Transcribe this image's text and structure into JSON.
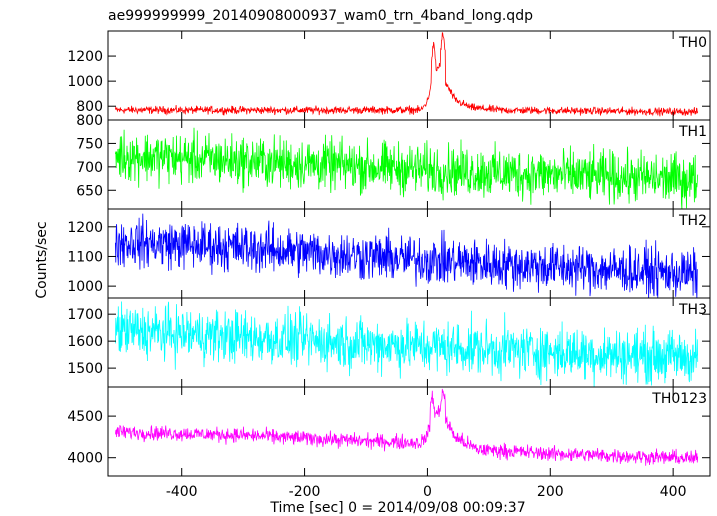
{
  "chart_data": {
    "type": "line",
    "title": "ae999999999_20140908000937_wam0_trn_4band_long.qdp",
    "xlabel": "Time [sec] 0 = 2014/09/08 00:09:37",
    "ylabel": "Counts/sec",
    "xlim": [
      -520,
      460
    ],
    "xticks": [
      -400,
      -200,
      0,
      200,
      400
    ],
    "x_range": [
      -508,
      440
    ],
    "panels": [
      {
        "name": "TH0",
        "color": "#ff0000",
        "ylim": [
          690,
          1400
        ],
        "yticks": [
          800,
          1000,
          1200
        ],
        "baseline": [
          [
            -508,
            770
          ],
          [
            -200,
            768
          ],
          [
            -10,
            770
          ],
          [
            0,
            840
          ],
          [
            10,
            1050
          ],
          [
            20,
            1130
          ],
          [
            30,
            980
          ],
          [
            45,
            850
          ],
          [
            70,
            790
          ],
          [
            120,
            768
          ],
          [
            440,
            755
          ]
        ],
        "noise": 45,
        "peaks": [
          {
            "x": 10,
            "y": 1300
          },
          {
            "x": 25,
            "y": 1390
          }
        ]
      },
      {
        "name": "TH1",
        "color": "#00ff00",
        "ylim": [
          610,
          800
        ],
        "yticks": [
          650,
          700,
          750,
          800
        ],
        "baseline": [
          [
            -508,
            725
          ],
          [
            -300,
            712
          ],
          [
            -100,
            700
          ],
          [
            100,
            688
          ],
          [
            300,
            678
          ],
          [
            440,
            672
          ]
        ],
        "noise": 80
      },
      {
        "name": "TH2",
        "color": "#0000ff",
        "ylim": [
          960,
          1260
        ],
        "yticks": [
          1000,
          1100,
          1200
        ],
        "baseline": [
          [
            -508,
            1150
          ],
          [
            -300,
            1130
          ],
          [
            -100,
            1100
          ],
          [
            100,
            1075
          ],
          [
            300,
            1055
          ],
          [
            440,
            1040
          ]
        ],
        "noise": 120
      },
      {
        "name": "TH3",
        "color": "#00ffff",
        "ylim": [
          1430,
          1760
        ],
        "yticks": [
          1500,
          1600,
          1700
        ],
        "baseline": [
          [
            -508,
            1640
          ],
          [
            -300,
            1615
          ],
          [
            -100,
            1590
          ],
          [
            100,
            1570
          ],
          [
            300,
            1550
          ],
          [
            440,
            1540
          ]
        ],
        "noise": 145
      },
      {
        "name": "TH0123",
        "color": "#ff00ff",
        "ylim": [
          3780,
          4850
        ],
        "yticks": [
          4000,
          4500
        ],
        "baseline": [
          [
            -508,
            4310
          ],
          [
            -300,
            4270
          ],
          [
            -100,
            4200
          ],
          [
            -10,
            4180
          ],
          [
            0,
            4280
          ],
          [
            10,
            4500
          ],
          [
            20,
            4560
          ],
          [
            30,
            4450
          ],
          [
            45,
            4250
          ],
          [
            80,
            4100
          ],
          [
            200,
            4050
          ],
          [
            440,
            3990
          ]
        ],
        "noise": 130,
        "peaks": [
          {
            "x": 8,
            "y": 4750
          },
          {
            "x": 25,
            "y": 4820
          }
        ]
      }
    ]
  }
}
